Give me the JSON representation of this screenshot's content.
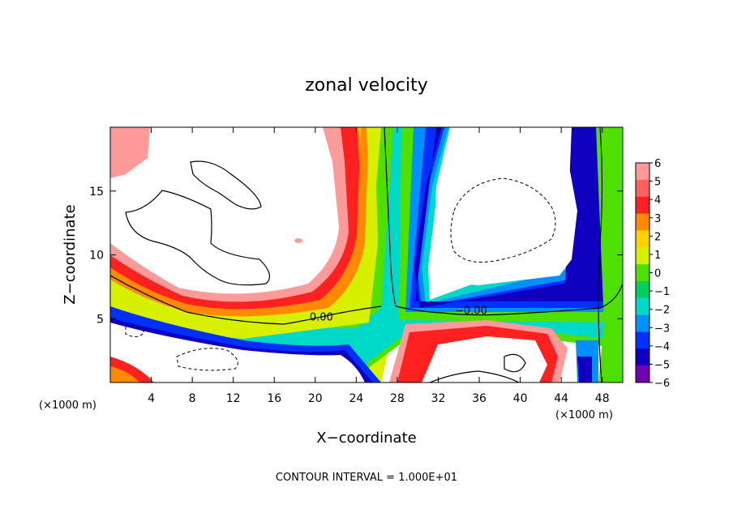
{
  "chart_data": {
    "type": "heatmap",
    "title": "zonal velocity",
    "xlabel": "X−coordinate",
    "ylabel": "Z−coordinate",
    "x_unit_left": "(×1000 m)",
    "x_unit_right": "(×1000 m)",
    "xlim": [
      0,
      50
    ],
    "ylim": [
      0,
      20
    ],
    "x_ticks": [
      4,
      8,
      12,
      16,
      20,
      24,
      28,
      32,
      36,
      40,
      44,
      48
    ],
    "x_tick_labels": [
      "4",
      "8",
      "12",
      "16",
      "20",
      "24",
      "28",
      "32",
      "36",
      "40",
      "44",
      "48"
    ],
    "y_ticks": [
      5,
      10,
      15
    ],
    "y_tick_labels": [
      "5",
      "10",
      "15"
    ],
    "colorbar": {
      "min": -6,
      "max": 6,
      "ticks": [
        6,
        5,
        4,
        3,
        2,
        1,
        0,
        -1,
        -2,
        -3,
        -4,
        -5,
        -6
      ],
      "tick_labels": [
        "6",
        "5",
        "4",
        "3",
        "2",
        "1",
        "0",
        "−1",
        "−2",
        "−3",
        "−4",
        "−5",
        "−6"
      ]
    },
    "contour_labels": [
      {
        "text": "0.00",
        "x": 20.6,
        "z": 5.0
      },
      {
        "text": "−0.00",
        "x": 35.2,
        "z": 5.5
      }
    ],
    "annotation": "CONTOUR INTERVAL = 1.000E+01",
    "colors": {
      "c6": "#ff9a9a",
      "c5": "#ff6060",
      "c4": "#ff2020",
      "c3": "#ff8a00",
      "c2": "#ffd200",
      "c1": "#d6f000",
      "c0": "#50e000",
      "cm1": "#00d060",
      "cm2": "#00d8c8",
      "cm3": "#0090ff",
      "cm4": "#0030ff",
      "cm5": "#1000c0",
      "cm6": "#7000b0"
    }
  }
}
